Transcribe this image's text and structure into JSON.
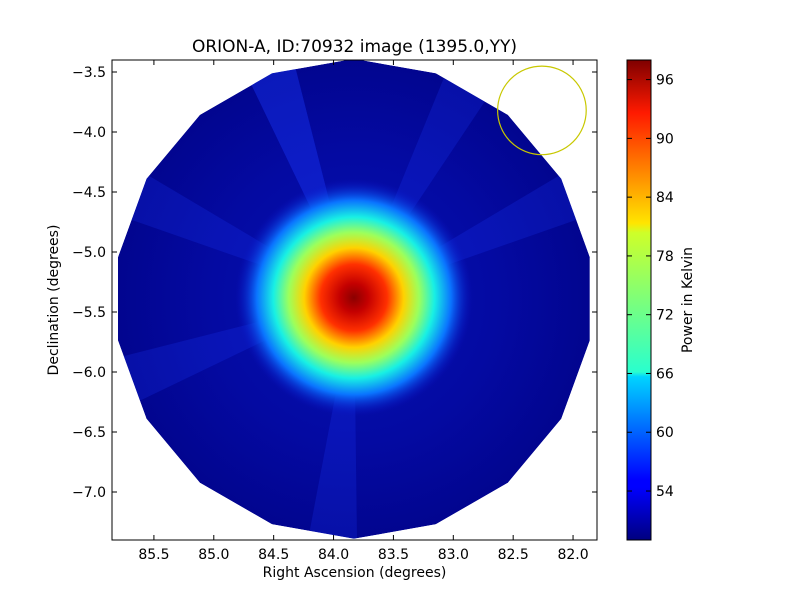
{
  "chart_data": {
    "type": "heatmap",
    "title": "ORION-A, ID:70932 image (1395.0,YY)",
    "xlabel": "Right Ascension (degrees)",
    "ylabel": "Declination (degrees)",
    "xlim": [
      85.85,
      81.8
    ],
    "ylim": [
      -7.4,
      -3.4
    ],
    "x_ticks": [
      85.5,
      85.0,
      84.5,
      84.0,
      83.5,
      83.0,
      82.5,
      82.0
    ],
    "x_tick_labels": [
      "85.5",
      "85.0",
      "84.5",
      "84.0",
      "83.5",
      "83.0",
      "82.5",
      "82.0"
    ],
    "y_ticks": [
      -3.5,
      -4.0,
      -4.5,
      -5.0,
      -5.5,
      -6.0,
      -6.5,
      -7.0
    ],
    "y_tick_labels": [
      "−3.5",
      "−4.0",
      "−4.5",
      "−5.0",
      "−5.5",
      "−6.0",
      "−6.5",
      "−7.0"
    ],
    "colormap": "jet",
    "colorbar": {
      "label": "Power in Kelvin",
      "range": [
        49,
        98
      ],
      "ticks": [
        54,
        60,
        66,
        72,
        78,
        84,
        90,
        96
      ],
      "tick_labels": [
        "54",
        "60",
        "66",
        "72",
        "78",
        "84",
        "90",
        "96"
      ]
    },
    "map": {
      "center_ra": 83.83,
      "center_dec": -5.39,
      "radius_deg": 2.0,
      "background_value": 51,
      "peak_value": 98,
      "peak_ra": 83.83,
      "peak_dec": -5.38,
      "source_sigma_deg": 0.33
    },
    "beam_circle": {
      "ra": 82.26,
      "dec": -3.82,
      "radius_deg": 0.37,
      "color": "#c8c800"
    },
    "grid": false
  }
}
